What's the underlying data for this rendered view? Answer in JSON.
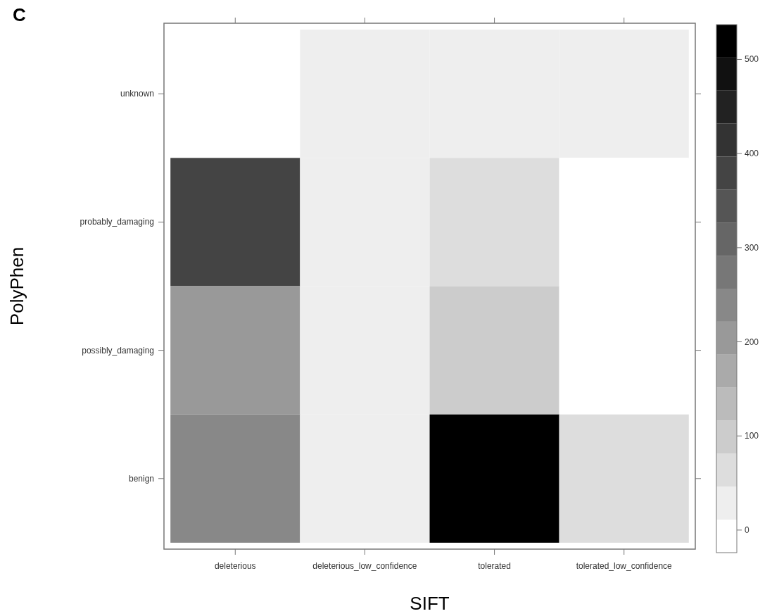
{
  "chart_data": {
    "type": "heatmap",
    "title": "C",
    "xlabel": "SIFT",
    "ylabel": "PolyPhen",
    "categories": [
      "deleterious",
      "deleterious_low_confidence",
      "tolerated",
      "tolerated_low_confidence"
    ],
    "y_categories": [
      "unknown",
      "probably_damaging",
      "possibly_damaging",
      "benign"
    ],
    "cells": [
      [
        0,
        20,
        20,
        20
      ],
      [
        380,
        20,
        60,
        0
      ],
      [
        200,
        20,
        100,
        0
      ],
      [
        240,
        20,
        530,
        60
      ]
    ],
    "clim": [
      -24,
      537
    ],
    "cticks": [
      0,
      100,
      200,
      300,
      400,
      500
    ]
  }
}
